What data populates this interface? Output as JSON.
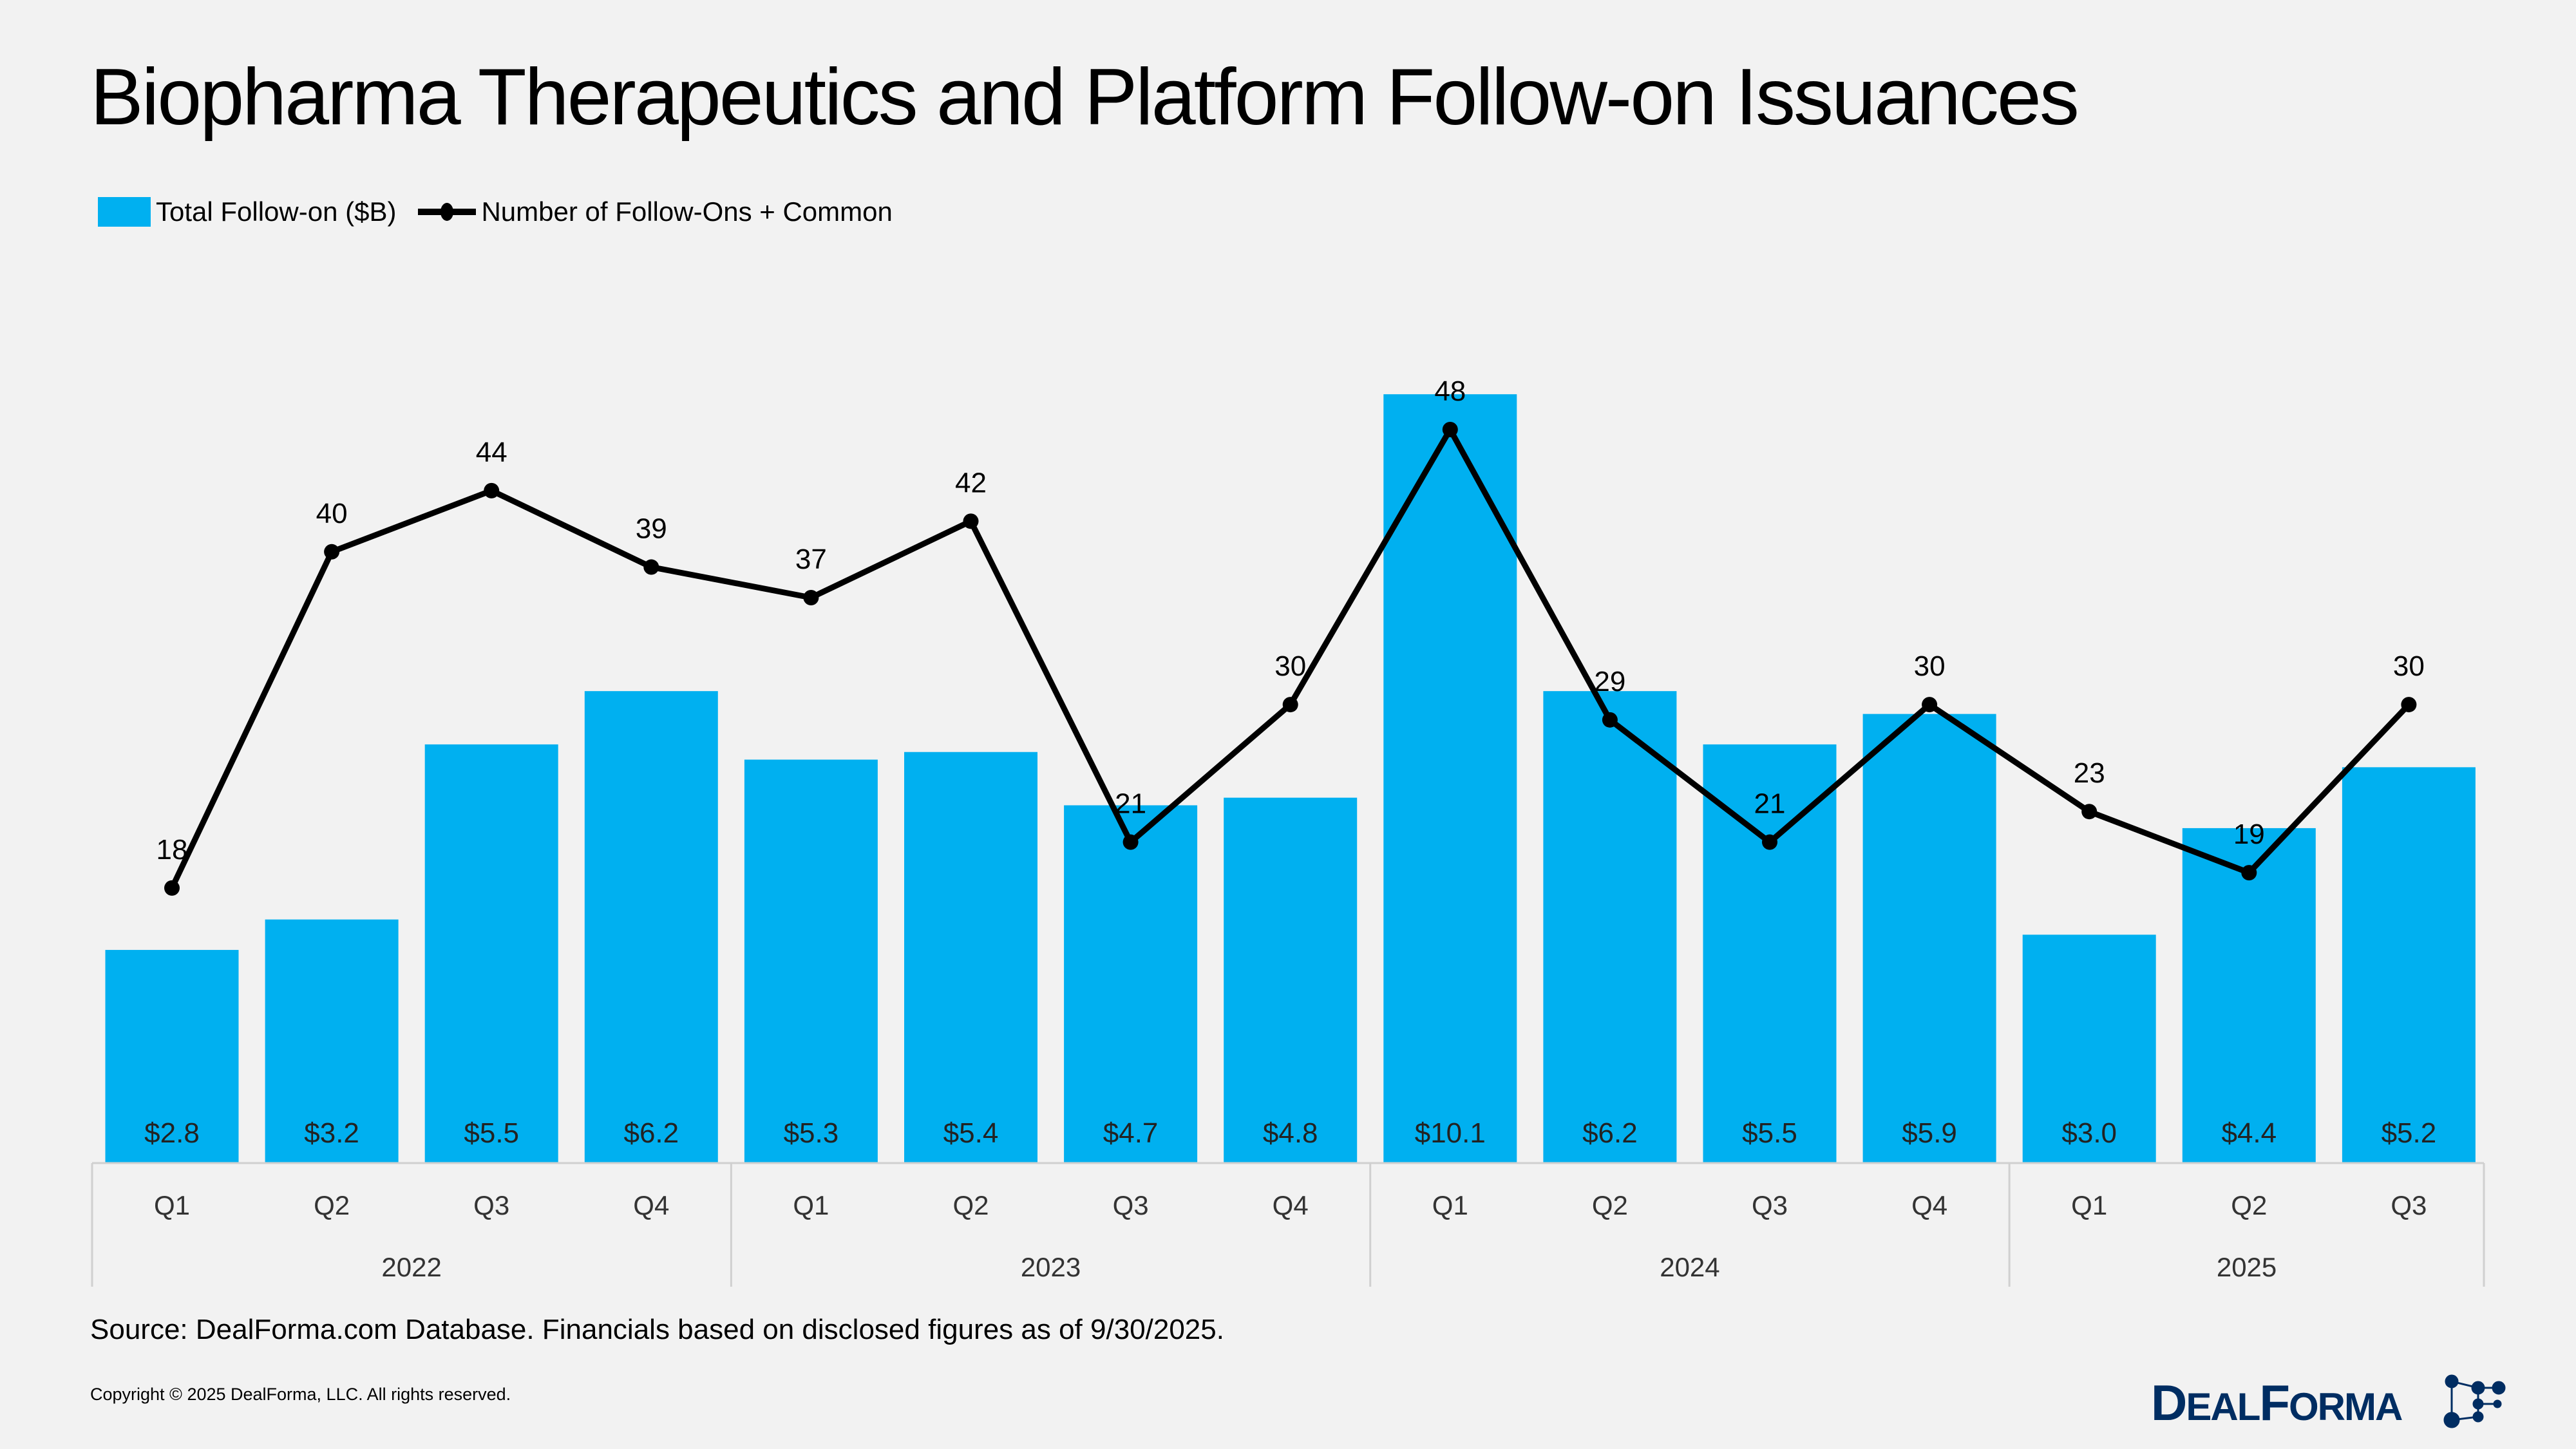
{
  "title": "Biopharma Therapeutics and Platform Follow-on Issuances",
  "source": "Source: DealForma.com Database. Financials based on disclosed figures as of 9/30/2025.",
  "copyright": "Copyright © 2025 DealForma, LLC. All rights reserved.",
  "logo_text": "DealForma",
  "colors": {
    "bar": "#00b0f0",
    "line": "#000000",
    "logo": "#002d62",
    "background": "#f2f2f2"
  },
  "chart_data": {
    "type": "bar+line",
    "title": "Biopharma Therapeutics and Platform Follow-on Issuances",
    "legend_position": "top-left",
    "grid": false,
    "categories": [
      "Q1",
      "Q2",
      "Q3",
      "Q4",
      "Q1",
      "Q2",
      "Q3",
      "Q4",
      "Q1",
      "Q2",
      "Q3",
      "Q4",
      "Q1",
      "Q2",
      "Q3"
    ],
    "groups": [
      {
        "label": "2022",
        "count": 4
      },
      {
        "label": "2023",
        "count": 4
      },
      {
        "label": "2024",
        "count": 4
      },
      {
        "label": "2025",
        "count": 3
      }
    ],
    "series": [
      {
        "name": "Total Follow-on ($B)",
        "type": "bar",
        "values": [
          2.8,
          3.2,
          5.5,
          6.2,
          5.3,
          5.4,
          4.7,
          4.8,
          10.1,
          6.2,
          5.5,
          5.9,
          3.0,
          4.4,
          5.2
        ],
        "labels": [
          "$2.8",
          "$3.2",
          "$5.5",
          "$6.2",
          "$5.3",
          "$5.4",
          "$4.7",
          "$4.8",
          "$10.1",
          "$6.2",
          "$5.5",
          "$5.9",
          "$3.0",
          "$4.4",
          "$5.2"
        ]
      },
      {
        "name": "Number of Follow-Ons + Common",
        "type": "line",
        "values": [
          18,
          40,
          44,
          39,
          37,
          42,
          21,
          30,
          48,
          29,
          21,
          30,
          23,
          19,
          30
        ]
      }
    ]
  }
}
